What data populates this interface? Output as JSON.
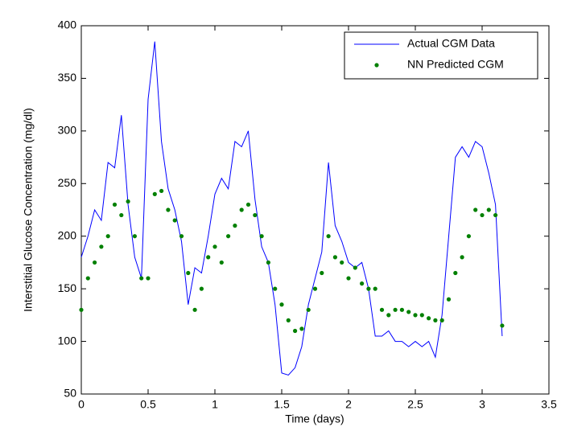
{
  "chart_data": {
    "type": "line",
    "xlabel": "Time (days)",
    "ylabel": "Interstitial Glucose Concentration (mg/dl)",
    "x": [
      0,
      0.05,
      0.1,
      0.15,
      0.2,
      0.25,
      0.3,
      0.35,
      0.4,
      0.45,
      0.5,
      0.55,
      0.6,
      0.65,
      0.7,
      0.75,
      0.8,
      0.85,
      0.9,
      0.95,
      1,
      1.05,
      1.1,
      1.15,
      1.2,
      1.25,
      1.3,
      1.35,
      1.4,
      1.45,
      1.5,
      1.55,
      1.6,
      1.65,
      1.7,
      1.75,
      1.8,
      1.85,
      1.9,
      1.95,
      2,
      2.05,
      2.1,
      2.15,
      2.2,
      2.25,
      2.3,
      2.35,
      2.4,
      2.45,
      2.5,
      2.55,
      2.6,
      2.65,
      2.7,
      2.75,
      2.8,
      2.85,
      2.9,
      2.95,
      3,
      3.05,
      3.1,
      3.15
    ],
    "series": [
      {
        "name": "Actual CGM Data",
        "color": "#0000ff",
        "mark": "line",
        "values": [
          180,
          200,
          225,
          215,
          270,
          265,
          315,
          230,
          180,
          160,
          330,
          385,
          290,
          245,
          225,
          195,
          135,
          170,
          165,
          200,
          240,
          255,
          245,
          290,
          285,
          300,
          235,
          190,
          175,
          135,
          70,
          68,
          75,
          95,
          135,
          160,
          185,
          270,
          210,
          195,
          175,
          170,
          175,
          150,
          105,
          105,
          110,
          100,
          100,
          95,
          100,
          95,
          100,
          85,
          125,
          200,
          275,
          285,
          275,
          290,
          285,
          260,
          230,
          105
        ]
      },
      {
        "name": "NN Predicted CGM",
        "color": "#008000",
        "mark": "dots",
        "values": [
          130,
          160,
          175,
          190,
          200,
          230,
          220,
          233,
          200,
          160,
          160,
          240,
          243,
          225,
          215,
          200,
          165,
          130,
          150,
          180,
          190,
          175,
          200,
          210,
          225,
          230,
          220,
          200,
          175,
          150,
          135,
          120,
          110,
          112,
          130,
          150,
          165,
          200,
          180,
          175,
          160,
          170,
          155,
          150,
          150,
          130,
          125,
          130,
          130,
          128,
          125,
          125,
          122,
          120,
          120,
          140,
          165,
          180,
          200,
          225,
          220,
          225,
          220,
          115
        ]
      }
    ],
    "xlim": [
      0,
      3.5
    ],
    "xticks": [
      0,
      0.5,
      1,
      1.5,
      2,
      2.5,
      3,
      3.5
    ],
    "ylim": [
      50,
      400
    ],
    "yticks": [
      50,
      100,
      150,
      200,
      250,
      300,
      350,
      400
    ],
    "legend": "upper right"
  }
}
